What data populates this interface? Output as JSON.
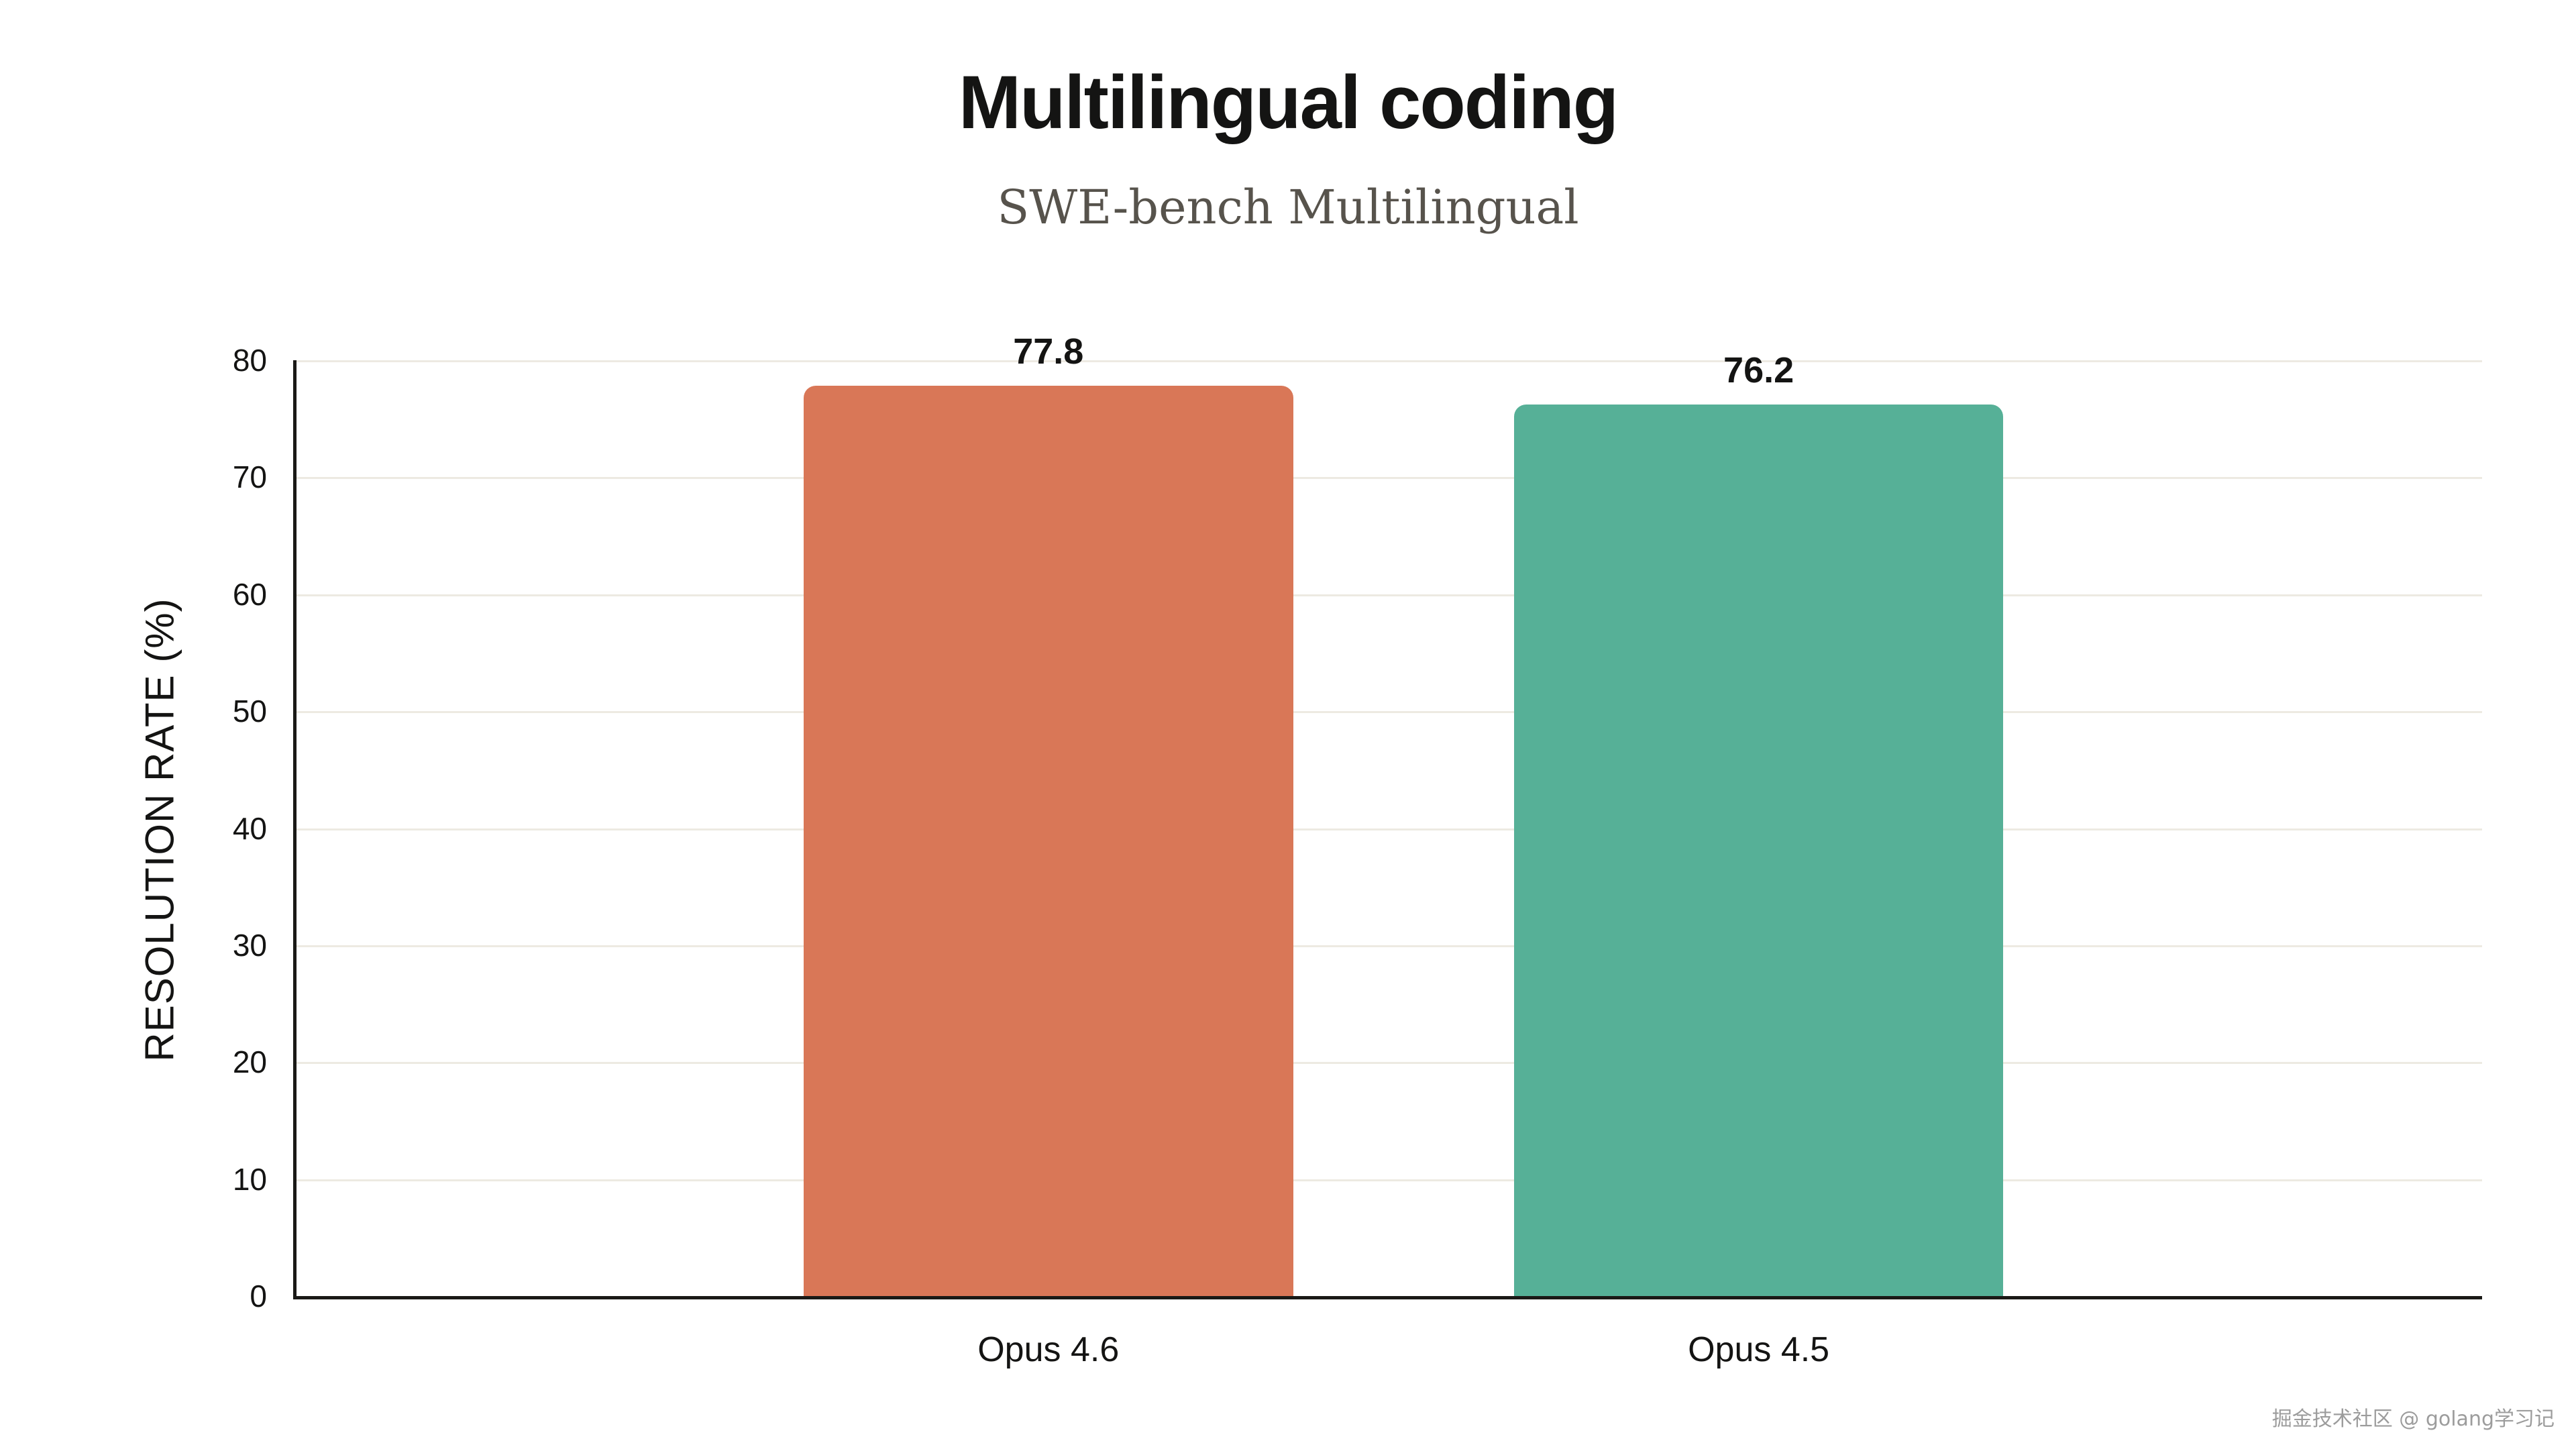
{
  "watermark": "掘金技术社区 @ golang学习记",
  "chart_data": {
    "type": "bar",
    "title": "Multilingual coding",
    "subtitle": "SWE-bench Multilingual",
    "categories": [
      "Opus 4.6",
      "Opus 4.5"
    ],
    "values": [
      77.8,
      76.2
    ],
    "value_labels": [
      "77.8",
      "76.2"
    ],
    "bar_colors": [
      "#d97757",
      "#56b097"
    ],
    "xlabel": "",
    "ylabel": "RESOLUTION RATE (%)",
    "ylim": [
      0,
      80
    ],
    "yticks": [
      0,
      10,
      20,
      30,
      40,
      50,
      60,
      70,
      80
    ],
    "grid": "horizontal",
    "legend": "none"
  }
}
